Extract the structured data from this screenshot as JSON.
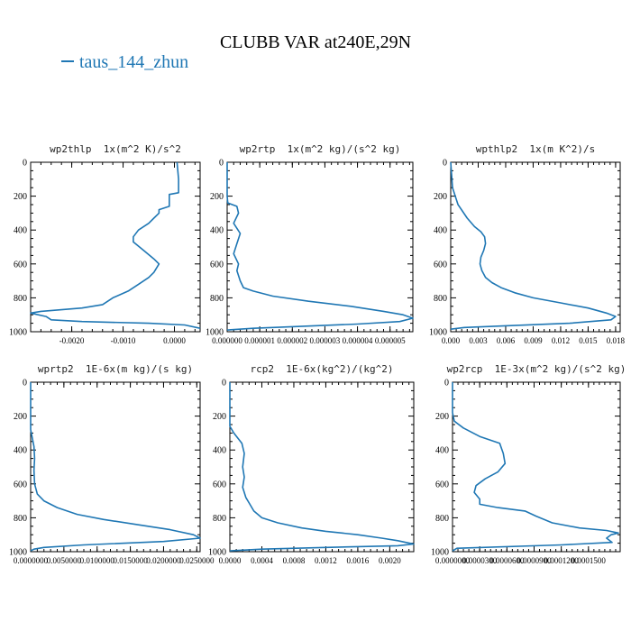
{
  "figure": {
    "title": "CLUBB VAR at240E,29N",
    "legend_label": "taus_144_zhun",
    "series_color": "#1f77b4"
  },
  "chart_data": [
    {
      "type": "line",
      "title": "wp2thlp  1x(m^2 K)/s^2",
      "x_ticks": [
        "-0.0020",
        "-0.0010",
        "0.0000"
      ],
      "x_tick_values": [
        -0.002,
        -0.001,
        0.0
      ],
      "xlim": [
        -0.0028,
        0.0005
      ],
      "y_ticks": [
        "0",
        "200",
        "400",
        "600",
        "800",
        "1000"
      ],
      "ylim": [
        0,
        1000
      ],
      "y_inverted": true,
      "series": [
        {
          "x": [
            5e-05,
            8e-05,
            8e-05,
            -0.0001,
            -0.0001,
            -0.0003,
            -0.0003,
            -0.0004,
            -0.0005,
            -0.0007,
            -0.0008,
            -0.0008,
            -0.0006,
            -0.0004,
            -0.0003,
            -0.0004,
            -0.0005,
            -0.0007,
            -0.0009,
            -0.0012,
            -0.0014,
            -0.0018,
            -0.0022,
            -0.0026,
            -0.0028,
            -0.0025,
            -0.0024,
            -0.0018,
            -0.0005,
            0.0002,
            0.0005
          ],
          "y": [
            0,
            100,
            180,
            190,
            260,
            280,
            300,
            330,
            360,
            400,
            440,
            470,
            520,
            570,
            600,
            650,
            680,
            720,
            760,
            800,
            840,
            860,
            870,
            880,
            890,
            910,
            930,
            940,
            950,
            960,
            980
          ]
        }
      ]
    },
    {
      "type": "line",
      "title": "wp2rtp  1x(m^2 kg)/(s^2 kg)",
      "x_ticks": [
        "0.000000",
        "0.000001",
        "0.000002",
        "0.000003",
        "0.000004",
        "0.000005"
      ],
      "x_tick_values": [
        0,
        1e-06,
        2e-06,
        3e-06,
        4e-06,
        5e-06
      ],
      "xlim": [
        0,
        5.7e-06
      ],
      "y_ticks": [
        "0",
        "200",
        "400",
        "600",
        "800",
        "1000"
      ],
      "ylim": [
        0,
        1000
      ],
      "y_inverted": true,
      "series": [
        {
          "x": [
            0,
            0,
            2e-08,
            3e-07,
            3.5e-07,
            2e-07,
            4e-07,
            3e-07,
            2e-07,
            3.5e-07,
            3e-07,
            4e-07,
            5e-07,
            8e-07,
            1.4e-06,
            2.5e-06,
            3.8e-06,
            4.8e-06,
            5.4e-06,
            5.7e-06,
            5.3e-06,
            4e-06,
            2e-06,
            8e-07,
            0
          ],
          "y": [
            0,
            200,
            240,
            260,
            300,
            360,
            420,
            480,
            540,
            600,
            640,
            700,
            740,
            760,
            790,
            820,
            850,
            880,
            900,
            920,
            940,
            955,
            970,
            980,
            990
          ]
        }
      ]
    },
    {
      "type": "line",
      "title": "wpthlp2  1x(m K^2)/s",
      "x_ticks": [
        "0.000",
        "0.003",
        "0.006",
        "0.009",
        "0.012",
        "0.015",
        "0.018"
      ],
      "x_tick_values": [
        0,
        0.003,
        0.006,
        0.009,
        0.012,
        0.015,
        0.018
      ],
      "xlim": [
        0,
        0.0185
      ],
      "y_ticks": [
        "0",
        "200",
        "400",
        "600",
        "800",
        "1000"
      ],
      "ylim": [
        0,
        1000
      ],
      "y_inverted": true,
      "series": [
        {
          "x": [
            0,
            0.0002,
            0.0008,
            0.0018,
            0.0026,
            0.0033,
            0.0037,
            0.0038,
            0.0036,
            0.0033,
            0.0032,
            0.0034,
            0.0038,
            0.0045,
            0.0055,
            0.007,
            0.009,
            0.012,
            0.015,
            0.017,
            0.018,
            0.0175,
            0.013,
            0.006,
            0.0015,
            0
          ],
          "y": [
            0,
            150,
            250,
            330,
            380,
            410,
            440,
            480,
            520,
            560,
            600,
            640,
            680,
            710,
            740,
            770,
            800,
            830,
            860,
            890,
            910,
            930,
            950,
            965,
            975,
            985
          ]
        }
      ]
    },
    {
      "type": "line",
      "title": "wprtp2  1E-6x(m kg)/(s kg)",
      "x_ticks": [
        "0.0000000",
        "0.0050000",
        "0.0100000",
        "0.0150000",
        "0.0200000",
        "0.0250000"
      ],
      "x_tick_values": [
        0,
        0.005,
        0.01,
        0.015,
        0.02,
        0.025
      ],
      "xlim": [
        0,
        0.0255
      ],
      "y_ticks": [
        "0",
        "200",
        "400",
        "600",
        "800",
        "1000"
      ],
      "ylim": [
        0,
        1000
      ],
      "y_inverted": true,
      "series": [
        {
          "x": [
            0,
            0,
            0.0002,
            0.0005,
            0.0006,
            0.0005,
            0.0006,
            0.001,
            0.002,
            0.004,
            0.007,
            0.011,
            0.016,
            0.021,
            0.0245,
            0.0255,
            0.02,
            0.008,
            0.002,
            0.0005,
            0
          ],
          "y": [
            0,
            280,
            320,
            380,
            450,
            520,
            600,
            660,
            700,
            740,
            780,
            810,
            840,
            870,
            900,
            920,
            940,
            960,
            975,
            985,
            995
          ]
        }
      ]
    },
    {
      "type": "line",
      "title": "rcp2  1E-6x(kg^2)/(kg^2)",
      "x_ticks": [
        "0.0000",
        "0.0004",
        "0.0008",
        "0.0012",
        "0.0016",
        "0.0020"
      ],
      "x_tick_values": [
        0,
        0.0004,
        0.0008,
        0.0012,
        0.0016,
        0.002
      ],
      "xlim": [
        0,
        0.0023
      ],
      "y_ticks": [
        "0",
        "200",
        "400",
        "600",
        "800",
        "1000"
      ],
      "ylim": [
        0,
        1000
      ],
      "y_inverted": true,
      "series": [
        {
          "x": [
            0,
            0,
            5e-05,
            0.00015,
            0.00018,
            0.00016,
            0.00018,
            0.00016,
            0.0002,
            0.00025,
            0.0003,
            0.0004,
            0.0006,
            0.0009,
            0.0012,
            0.0016,
            0.0019,
            0.0021,
            0.0022,
            0.0023,
            0.0021,
            0.0012,
            0.0004,
            0
          ],
          "y": [
            0,
            260,
            300,
            360,
            420,
            500,
            560,
            620,
            680,
            720,
            760,
            800,
            830,
            860,
            880,
            900,
            920,
            935,
            945,
            955,
            965,
            975,
            985,
            995
          ]
        }
      ]
    },
    {
      "type": "line",
      "title": "wp2rcp  1E-3x(m^2 kg)/(s^2 kg)",
      "x_ticks": [
        "0.0000000",
        "0.0000300",
        "0.0000600",
        "0.0000900",
        "0.0001200",
        "0.0001500"
      ],
      "x_tick_values": [
        0,
        3e-05,
        6e-05,
        9e-05,
        0.00012,
        0.00015
      ],
      "xlim": [
        0,
        0.000185
      ],
      "y_ticks": [
        "0",
        "200",
        "400",
        "600",
        "800",
        "1000"
      ],
      "ylim": [
        0,
        1000
      ],
      "y_inverted": true,
      "series": [
        {
          "x": [
            0,
            0,
            2e-06,
            1.2e-05,
            3e-05,
            5.2e-05,
            5.6e-05,
            5.8e-05,
            5e-05,
            3.6e-05,
            2.6e-05,
            2.4e-05,
            3e-05,
            3e-05,
            5e-05,
            8e-05,
            9.2e-05,
            0.00011,
            0.00014,
            0.00017,
            0.000183,
            0.000175,
            0.00017,
            0.000176,
            0.00012,
            5e-06,
            0
          ],
          "y": [
            0,
            180,
            230,
            270,
            320,
            360,
            420,
            480,
            530,
            570,
            610,
            650,
            690,
            720,
            740,
            760,
            790,
            830,
            860,
            875,
            890,
            900,
            920,
            945,
            960,
            980,
            995
          ]
        }
      ]
    }
  ]
}
